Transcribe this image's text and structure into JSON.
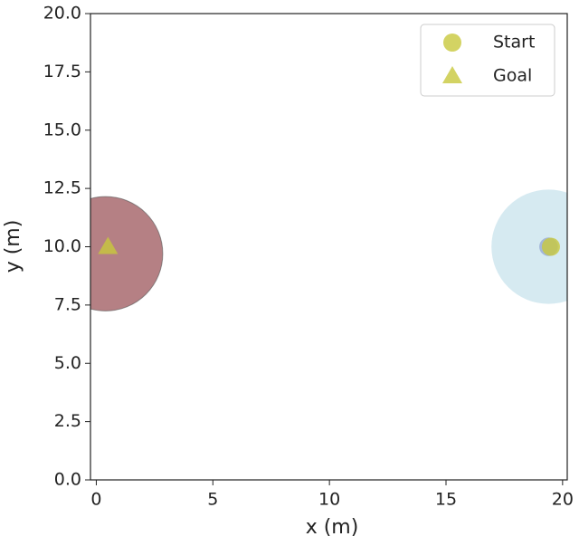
{
  "chart_data": {
    "type": "scatter",
    "xlabel": "x (m)",
    "ylabel": "y (m)",
    "xlim": [
      -0.25,
      20.2
    ],
    "ylim": [
      0,
      20
    ],
    "xticks": [
      0,
      5,
      10,
      15,
      20
    ],
    "yticks": [
      {
        "value": 0,
        "label": "0.0"
      },
      {
        "value": 2.5,
        "label": "2.5"
      },
      {
        "value": 5,
        "label": "5.0"
      },
      {
        "value": 7.5,
        "label": "7.5"
      },
      {
        "value": 10,
        "label": "10.0"
      },
      {
        "value": 12.5,
        "label": "12.5"
      },
      {
        "value": 15,
        "label": "15.0"
      },
      {
        "value": 17.5,
        "label": "17.5"
      },
      {
        "value": 20,
        "label": "20.0"
      }
    ],
    "circles": [
      {
        "x": 0.4,
        "y": 9.7,
        "r": 2.45,
        "color": "#a86a6e"
      },
      {
        "x": 19.4,
        "y": 10,
        "r": 2.45,
        "color": "#cfe6ee"
      },
      {
        "x": 19.4,
        "y": 10,
        "r": 0.4,
        "color": "#9aaed6"
      }
    ],
    "series": [
      {
        "name": "Start",
        "marker": "circle",
        "color": "#c8c83c",
        "x": [
          19.5
        ],
        "y": [
          10
        ]
      },
      {
        "name": "Goal",
        "marker": "triangle",
        "color": "#c8c83c",
        "x": [
          0.5
        ],
        "y": [
          10
        ]
      }
    ],
    "legend": "upper right"
  }
}
